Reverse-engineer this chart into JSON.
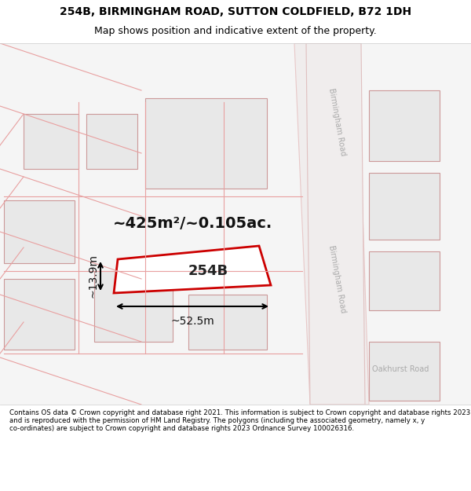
{
  "title_line1": "254B, BIRMINGHAM ROAD, SUTTON COLDFIELD, B72 1DH",
  "title_line2": "Map shows position and indicative extent of the property.",
  "footer_text": "Contains OS data © Crown copyright and database right 2021. This information is subject to Crown copyright and database rights 2023 and is reproduced with the permission of HM Land Registry. The polygons (including the associated geometry, namely x, y co-ordinates) are subject to Crown copyright and database rights 2023 Ordnance Survey 100026316.",
  "area_label": "~425m²/~0.105ac.",
  "width_label": "~52.5m",
  "height_label": "~13.9m",
  "property_label": "254B",
  "map_bg": "#f8f8f8",
  "header_bg": "#ffffff",
  "footer_bg": "#ffffff",
  "building_fill": "#e8e8e8",
  "building_stroke": "#c0c0c0",
  "road_fill": "#f0f0f0",
  "road_stroke": "#ddbbbb",
  "highlight_fill": "#ffffff",
  "highlight_stroke": "#dd0000",
  "road_label_color": "#aaaaaa",
  "road_label_birmingham": "Birmingham Road",
  "road_label_oakhurst": "Oakhurst Road"
}
